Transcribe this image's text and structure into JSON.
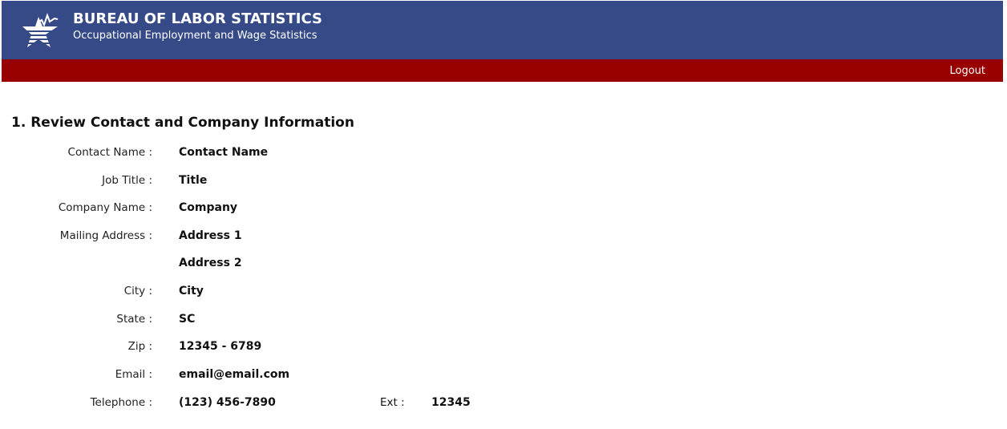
{
  "header": {
    "title": "BUREAU OF LABOR STATISTICS",
    "subtitle": "Occupational Employment and Wage Statistics",
    "logo_icon": "bls-star-logo",
    "colors": {
      "header_bg": "#364a88",
      "nav_bg": "#990000"
    }
  },
  "nav": {
    "logout_label": "Logout"
  },
  "section": {
    "title": "1. Review Contact and Company Information",
    "fields": [
      {
        "label": "Contact Name :",
        "value": "Contact Name"
      },
      {
        "label": "Job Title :",
        "value": "Title"
      },
      {
        "label": "Company Name :",
        "value": "Company"
      },
      {
        "label": "Mailing Address :",
        "value": "Address 1"
      },
      {
        "label": "",
        "value": "Address 2"
      },
      {
        "label": "City :",
        "value": "City"
      },
      {
        "label": "State :",
        "value": "SC"
      },
      {
        "label": "Zip :",
        "value": "12345 - 6789"
      },
      {
        "label": "Email :",
        "value": "email@email.com"
      },
      {
        "label": "Telephone :",
        "value": "(123) 456-7890"
      }
    ],
    "ext_label": "Ext :",
    "ext_value": "12345"
  }
}
